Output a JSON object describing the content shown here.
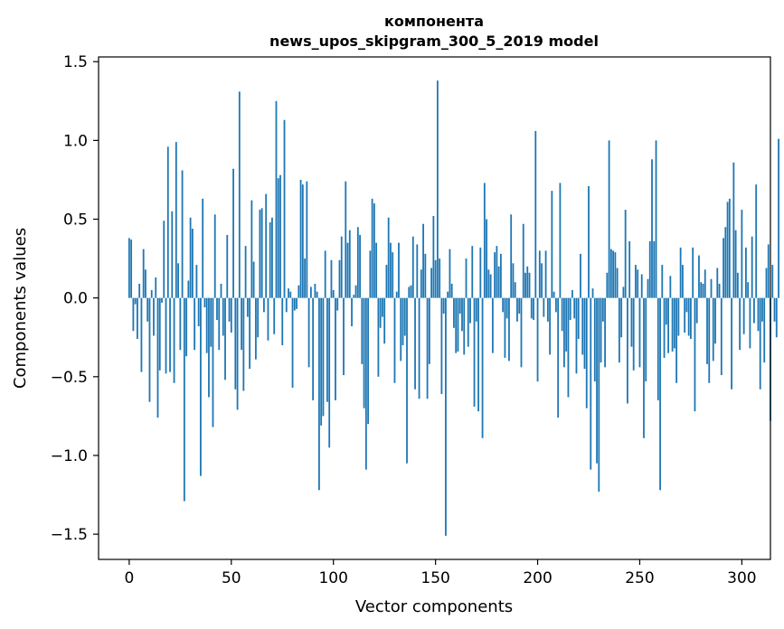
{
  "chart_data": {
    "type": "bar",
    "title_lines": [
      "компонента",
      "news_upos_skipgram_300_5_2019 model"
    ],
    "xlabel": "Vector components",
    "ylabel": "Components values",
    "xlim": [
      -15,
      314
    ],
    "ylim": [
      -1.66,
      1.53
    ],
    "x_ticks": [
      0,
      50,
      100,
      150,
      200,
      250,
      300
    ],
    "x_tick_labels": [
      "0",
      "50",
      "100",
      "150",
      "200",
      "250",
      "300"
    ],
    "y_ticks": [
      1.5,
      1.0,
      0.5,
      0.0,
      -0.5,
      -1.0,
      -1.5
    ],
    "y_tick_labels": [
      "1.5",
      "1.0",
      "0.5",
      "0.0",
      "−0.5",
      "−1.0",
      "−1.5"
    ],
    "bar_color": "#1f77b4",
    "grid": false,
    "values": [
      0.38,
      0.37,
      -0.21,
      -0.04,
      -0.26,
      0.09,
      -0.47,
      0.31,
      0.18,
      -0.15,
      -0.66,
      0.05,
      -0.24,
      0.13,
      -0.76,
      -0.46,
      -0.03,
      0.49,
      -0.48,
      0.96,
      -0.47,
      0.55,
      -0.54,
      0.99,
      0.22,
      -0.33,
      0.81,
      -1.29,
      -0.37,
      0.11,
      0.51,
      0.44,
      -0.33,
      0.21,
      -0.18,
      -1.13,
      0.63,
      -0.06,
      -0.35,
      -0.63,
      -0.31,
      -0.82,
      0.53,
      -0.14,
      -0.33,
      0.09,
      -0.24,
      -0.52,
      0.4,
      -0.15,
      -0.22,
      0.82,
      -0.58,
      -0.71,
      1.31,
      -0.33,
      -0.59,
      0.33,
      -0.12,
      -0.45,
      0.62,
      0.23,
      -0.39,
      -0.25,
      0.56,
      0.57,
      -0.09,
      0.66,
      -0.27,
      0.48,
      0.51,
      -0.23,
      1.25,
      0.76,
      0.78,
      -0.3,
      1.13,
      -0.09,
      0.06,
      0.04,
      -0.57,
      -0.08,
      -0.07,
      0.08,
      0.75,
      0.72,
      0.25,
      0.74,
      -0.44,
      0.07,
      -0.65,
      0.09,
      0.04,
      -1.22,
      -0.81,
      -0.75,
      0.3,
      -0.66,
      -0.95,
      0.24,
      0.05,
      -0.65,
      -0.08,
      0.24,
      0.39,
      -0.49,
      0.74,
      0.35,
      0.43,
      -0.18,
      0.02,
      0.08,
      0.45,
      0.4,
      -0.42,
      -0.7,
      -1.09,
      -0.8,
      0.3,
      0.63,
      0.6,
      0.35,
      -0.5,
      -0.19,
      -0.12,
      -0.29,
      0.21,
      0.51,
      0.35,
      0.29,
      -0.54,
      0.04,
      0.35,
      -0.4,
      -0.3,
      -0.24,
      -1.05,
      0.07,
      0.08,
      0.39,
      -0.58,
      0.34,
      -0.64,
      0.18,
      0.47,
      0.28,
      -0.64,
      -0.42,
      0.19,
      0.52,
      0.24,
      1.38,
      0.25,
      -0.61,
      -0.1,
      -1.51,
      0.04,
      0.31,
      0.09,
      -0.19,
      -0.35,
      -0.34,
      -0.1,
      -0.21,
      -0.36,
      0.25,
      -0.31,
      -0.16,
      0.33,
      -0.69,
      -0.15,
      -0.72,
      0.32,
      -0.89,
      0.73,
      0.5,
      0.18,
      0.15,
      -0.35,
      0.29,
      0.33,
      0.2,
      0.28,
      -0.09,
      -0.38,
      -0.13,
      -0.4,
      0.53,
      0.22,
      0.1,
      -0.15,
      -0.1,
      -0.44,
      0.47,
      0.16,
      0.2,
      0.16,
      -0.13,
      -0.14,
      1.06,
      -0.53,
      0.3,
      0.22,
      -0.12,
      0.3,
      -0.15,
      -0.36,
      0.68,
      0.04,
      -0.09,
      -0.76,
      0.73,
      -0.21,
      -0.44,
      -0.34,
      -0.63,
      -0.14,
      0.05,
      -0.13,
      -0.48,
      -0.26,
      0.28,
      -0.36,
      -0.45,
      -0.7,
      0.71,
      -1.09,
      0.06,
      -0.53,
      -1.05,
      -1.23,
      -0.41,
      -0.15,
      -0.44,
      0.16,
      1.0,
      0.31,
      0.3,
      0.29,
      0.19,
      -0.41,
      -0.25,
      0.07,
      0.56,
      -0.67,
      0.36,
      -0.31,
      -0.46,
      0.21,
      0.18,
      -0.44,
      0.15,
      -0.89,
      -0.53,
      0.12,
      0.36,
      0.88,
      0.36,
      1.0,
      -0.65,
      -1.22,
      0.21,
      -0.38,
      -0.17,
      -0.35,
      0.14,
      -0.34,
      -0.32,
      -0.54,
      -0.24,
      0.32,
      0.21,
      -0.22,
      -0.09,
      -0.24,
      -0.26,
      0.32,
      -0.72,
      -0.16,
      0.27,
      0.1,
      0.09,
      0.18,
      -0.42,
      -0.54,
      0.12,
      -0.4,
      -0.29,
      0.19,
      0.09,
      -0.49,
      0.38,
      0.45,
      0.61,
      0.63,
      -0.58,
      0.86,
      0.43,
      0.16,
      -0.33,
      0.56,
      -0.23,
      0.32,
      0.1,
      -0.32,
      0.39,
      -0.16,
      0.72,
      -0.21,
      -0.58,
      -0.15,
      -0.41,
      0.19,
      0.34,
      -0.78,
      0.21,
      -0.15,
      -0.25,
      1.01
    ]
  }
}
